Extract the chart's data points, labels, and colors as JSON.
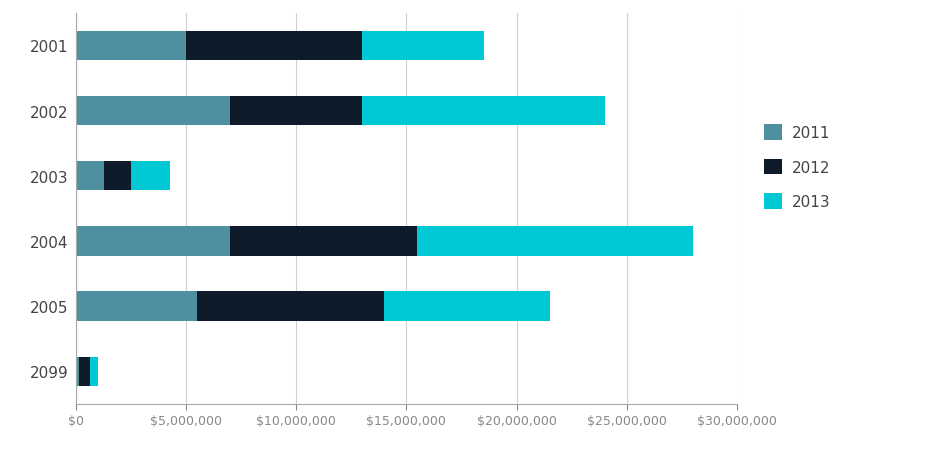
{
  "categories": [
    "2001",
    "2002",
    "2003",
    "2004",
    "2005",
    "2099"
  ],
  "series": {
    "2011": [
      5000000,
      7000000,
      1300000,
      7000000,
      5500000,
      150000
    ],
    "2012": [
      8000000,
      6000000,
      1200000,
      8500000,
      8500000,
      500000
    ],
    "2013": [
      5500000,
      11000000,
      1800000,
      12500000,
      7500000,
      350000
    ]
  },
  "colors": {
    "2011": "#4e8fa0",
    "2012": "#0d1b2a",
    "2013": "#00c8d4"
  },
  "legend_labels": [
    "2011",
    "2012",
    "2013"
  ],
  "xlim": [
    0,
    30000000
  ],
  "xtick_interval": 5000000,
  "background_color": "#ffffff",
  "bar_height": 0.45,
  "tick_color": "#888888",
  "label_fontsize": 11,
  "tick_fontsize": 9
}
